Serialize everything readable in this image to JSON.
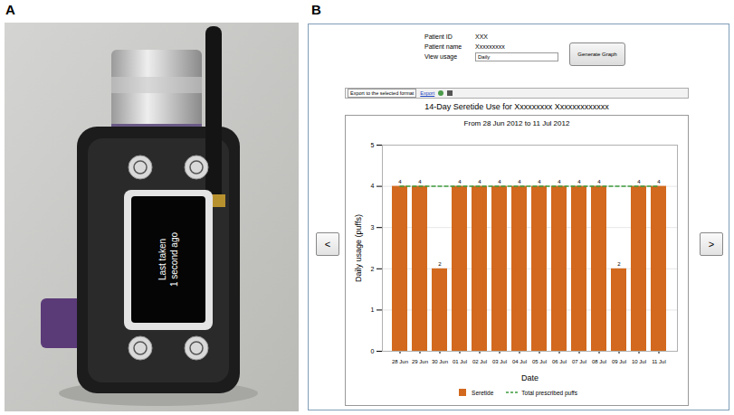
{
  "panel_a": {
    "letter": "A",
    "screen": [
      "Last taken",
      "1 second ago"
    ]
  },
  "panel_b": {
    "letter": "B",
    "fields": [
      {
        "label": "Patient ID",
        "value": "XXX"
      },
      {
        "label": "Patient name",
        "value": "Xxxxxxxxx"
      },
      {
        "label": "View usage",
        "value": "Daily"
      }
    ],
    "button": "Generate Graph",
    "export_select": "Export to the selected format",
    "export_link": "Export",
    "nav": [
      "<",
      ">"
    ]
  },
  "chart_data": {
    "type": "bar",
    "title": "14-Day Seretide Use for Xxxxxxxxx Xxxxxxxxxxxxx",
    "subtitle": "From 28 Jun 2012 to 11 Jul 2012",
    "x_label": "Date",
    "y_label": "Daily usage (puffs)",
    "categories": [
      "28 Jun",
      "29 Jun",
      "30 Jun",
      "01 Jul",
      "02 Jul",
      "03 Jul",
      "04 Jul",
      "05 Jul",
      "06 Jul",
      "07 Jul",
      "08 Jul",
      "09 Jul",
      "10 Jul",
      "11 Jul"
    ],
    "series": [
      {
        "name": "Seretide",
        "type": "bar",
        "color": "#d2691e",
        "values": [
          4,
          4,
          2,
          4,
          4,
          4,
          4,
          4,
          4,
          4,
          4,
          2,
          4,
          4
        ]
      },
      {
        "name": "Total prescribed puffs",
        "type": "line",
        "line_style": "dashed",
        "color": "#3c9a3c",
        "values": [
          4,
          4,
          4,
          4,
          4,
          4,
          4,
          4,
          4,
          4,
          4,
          4,
          4,
          4
        ]
      }
    ],
    "ylim": [
      0,
      5
    ],
    "yticks": [
      0,
      1,
      2,
      3,
      4,
      5
    ],
    "grid": true,
    "legend": "bottom",
    "data_labels": true
  }
}
